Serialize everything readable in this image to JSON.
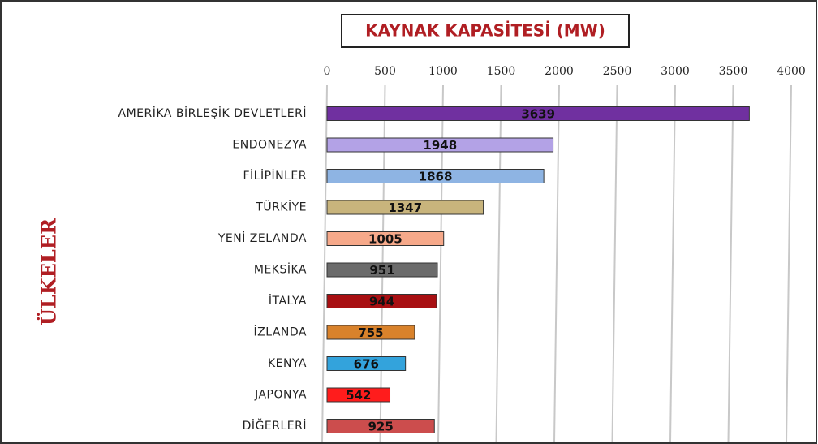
{
  "chart_data": {
    "type": "bar",
    "orientation": "horizontal",
    "title": "KAYNAK KAPASİTESİ (MW)",
    "y_axis_label": "ÜLKELER",
    "categories": [
      "AMERİKA BİRLEŞİK DEVLETLERİ",
      "ENDONEZYA",
      "FİLİPİNLER",
      "TÜRKİYE",
      "YENİ ZELANDA",
      "MEKSİKA",
      "İTALYA",
      "İZLANDA",
      "KENYA",
      "JAPONYA",
      "DİĞERLERİ"
    ],
    "values": [
      3639,
      1948,
      1868,
      1347,
      1005,
      951,
      944,
      755,
      676,
      542,
      925
    ],
    "colors": [
      "#7030a0",
      "#b3a2e6",
      "#8eb4e3",
      "#c8b47c",
      "#f6a98a",
      "#6b6b6b",
      "#a80f12",
      "#d9822b",
      "#33a3dc",
      "#ff1c1c",
      "#cc4d4d"
    ],
    "xlim": [
      0,
      4000
    ],
    "xticks": [
      0,
      500,
      1000,
      1500,
      2000,
      2500,
      3000,
      3500,
      4000
    ],
    "grid": true
  }
}
